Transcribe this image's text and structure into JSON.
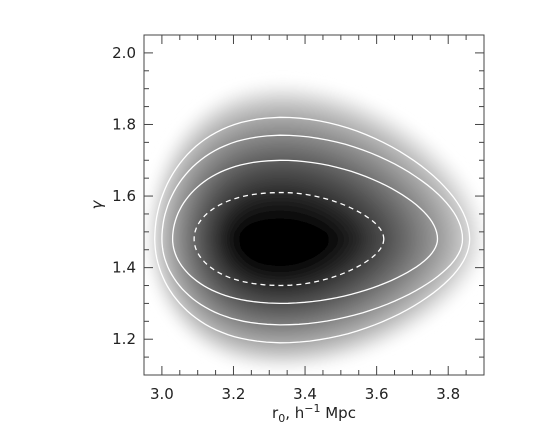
{
  "chart_data": {
    "type": "heatmap",
    "title": "",
    "xlabel_parts": [
      "r",
      "0",
      ", h",
      "−1",
      " Mpc"
    ],
    "ylabel": "γ",
    "xlim": [
      2.95,
      3.9
    ],
    "ylim": [
      1.1,
      2.05
    ],
    "x_ticks": [
      {
        "value": 3.0,
        "label": "3.0"
      },
      {
        "value": 3.2,
        "label": "3.2"
      },
      {
        "value": 3.4,
        "label": "3.4"
      },
      {
        "value": 3.6,
        "label": "3.6"
      },
      {
        "value": 3.8,
        "label": "3.8"
      }
    ],
    "y_ticks": [
      {
        "value": 1.2,
        "label": "1.2"
      },
      {
        "value": 1.4,
        "label": "1.4"
      },
      {
        "value": 1.6,
        "label": "1.6"
      },
      {
        "value": 1.8,
        "label": "1.8"
      },
      {
        "value": 2.0,
        "label": "2.0"
      }
    ],
    "peak": {
      "x": 3.33,
      "y": 1.48
    },
    "contours": [
      {
        "style": "dashed",
        "x_range": [
          3.09,
          3.62
        ],
        "y_range": [
          1.35,
          1.61
        ]
      },
      {
        "style": "solid",
        "x_range": [
          3.03,
          3.77
        ],
        "y_range": [
          1.3,
          1.7
        ]
      },
      {
        "style": "solid",
        "x_range": [
          3.0,
          3.84
        ],
        "y_range": [
          1.24,
          1.77
        ]
      },
      {
        "style": "solid",
        "x_range": [
          2.98,
          3.86
        ],
        "y_range": [
          1.19,
          1.82
        ]
      }
    ],
    "density_extent": {
      "x_range": [
        2.96,
        3.9
      ],
      "y_range": [
        1.12,
        1.91
      ]
    },
    "colormap": "gray (white to black)",
    "contour_color": "#ffffff",
    "frame_color": "#444444",
    "grid": false
  }
}
